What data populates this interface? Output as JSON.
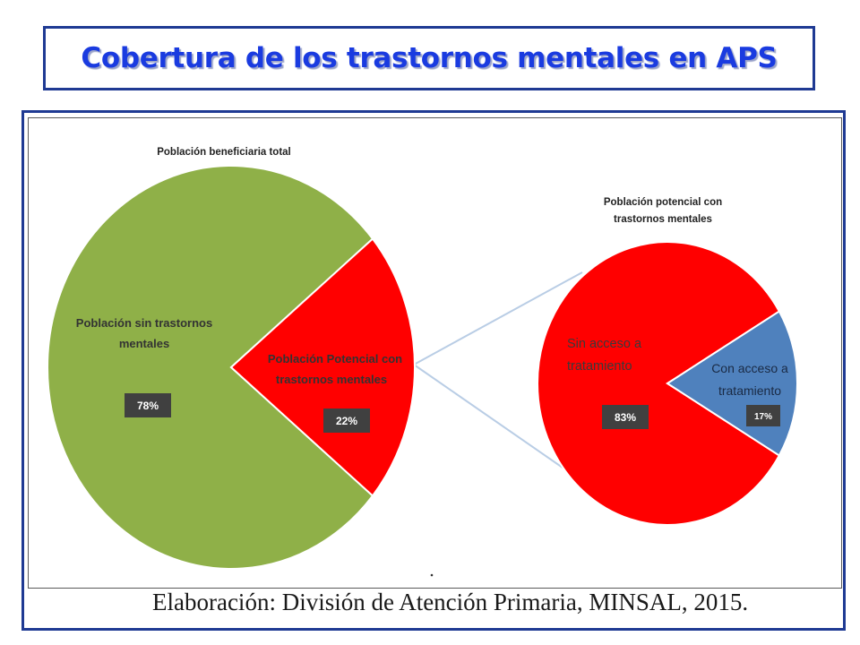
{
  "title": "Cobertura de los trastornos mentales en APS",
  "caption": "Elaboración: División de Atención Primaria, MINSAL, 2015.",
  "colors": {
    "title_text": "#1a3be0",
    "frame_border": "#1f3a93",
    "green_slice": "#8fb048",
    "red_slice": "#ff0000",
    "blue_slice": "#4f81bd",
    "connector": "#b9cde5",
    "value_box": "#404040"
  },
  "chart_data": [
    {
      "type": "pie",
      "title": "Población beneficiaria total",
      "slices": [
        {
          "label_lines": [
            "Población sin trastornos",
            "mentales"
          ],
          "value": 78,
          "value_label": "78%",
          "color": "#8fb048"
        },
        {
          "label_lines": [
            "Población Potencial con",
            "trastornos mentales"
          ],
          "value": 22,
          "value_label": "22%",
          "color": "#ff0000"
        }
      ]
    },
    {
      "type": "pie",
      "title_lines": [
        "Población potencial con",
        "trastornos mentales"
      ],
      "slices": [
        {
          "label_lines": [
            "Sin  acceso a",
            "tratamiento"
          ],
          "value": 83,
          "value_label": "83%",
          "color": "#ff0000"
        },
        {
          "label_lines": [
            "Con  acceso a",
            "tratamiento"
          ],
          "value": 17,
          "value_label": "17%",
          "color": "#4f81bd"
        }
      ]
    }
  ]
}
